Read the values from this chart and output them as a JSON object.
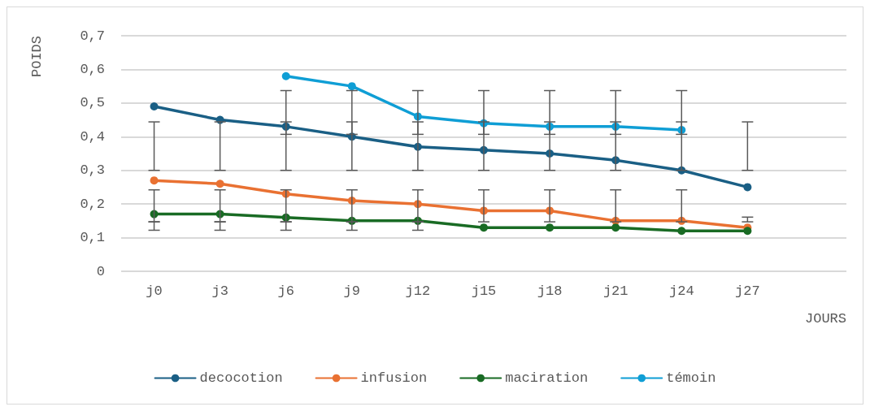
{
  "chart_data": {
    "type": "line",
    "xlabel": "JOURS",
    "ylabel": "POIDS",
    "categories": [
      "j0",
      "j3",
      "j6",
      "j9",
      "j12",
      "j15",
      "j18",
      "j21",
      "j24",
      "j27",
      null
    ],
    "series": [
      {
        "name": "decocotion",
        "color": "#1a5f85",
        "values": [
          0.49,
          0.45,
          0.43,
          0.4,
          0.37,
          0.36,
          0.35,
          0.33,
          0.3,
          0.25,
          null
        ],
        "errors": [
          [
            0.3,
            0.444
          ],
          [
            0.3,
            0.444
          ],
          [
            0.3,
            0.444
          ],
          [
            0.3,
            0.444
          ],
          [
            0.3,
            0.444
          ],
          [
            0.3,
            0.444
          ],
          [
            0.3,
            0.444
          ],
          [
            0.3,
            0.444
          ],
          [
            0.3,
            0.444
          ],
          [
            0.3,
            0.444
          ],
          null
        ]
      },
      {
        "name": "infusion",
        "color": "#e97132",
        "values": [
          0.27,
          0.26,
          0.23,
          0.21,
          0.2,
          0.18,
          0.18,
          0.15,
          0.15,
          0.13,
          null
        ],
        "errors": [
          [
            0.147,
            0.242
          ],
          [
            0.147,
            0.242
          ],
          [
            0.147,
            0.242
          ],
          [
            0.147,
            0.242
          ],
          [
            0.147,
            0.242
          ],
          [
            0.147,
            0.242
          ],
          [
            0.147,
            0.242
          ],
          [
            0.147,
            0.242
          ],
          [
            0.147,
            0.242
          ],
          [
            0.147,
            0.161
          ],
          null
        ]
      },
      {
        "name": "maciration",
        "color": "#196b24",
        "values": [
          0.17,
          0.17,
          0.16,
          0.15,
          0.15,
          0.13,
          0.13,
          0.13,
          0.12,
          0.12,
          null
        ],
        "errors": [
          [
            0.122,
            0.147
          ],
          [
            0.122,
            0.147
          ],
          [
            0.122,
            0.147
          ],
          [
            0.122,
            0.147
          ],
          [
            0.122,
            0.147
          ],
          null,
          null,
          null,
          null,
          null,
          null
        ]
      },
      {
        "name": "témoin",
        "color": "#0f9ed5",
        "values": [
          null,
          null,
          0.58,
          0.55,
          0.46,
          0.44,
          0.43,
          0.43,
          0.42,
          null,
          null
        ],
        "errors": [
          null,
          null,
          [
            0.407,
            0.537
          ],
          [
            0.407,
            0.537
          ],
          [
            0.407,
            0.537
          ],
          [
            0.407,
            0.537
          ],
          [
            0.407,
            0.537
          ],
          [
            0.407,
            0.537
          ],
          [
            0.407,
            0.537
          ],
          null,
          null
        ]
      }
    ],
    "ylim": [
      0,
      0.7
    ],
    "yticks": [
      0,
      {
        "value": 0.1,
        "label": "0,1"
      },
      {
        "value": 0.2,
        "label": "0,2"
      },
      {
        "value": 0.3,
        "label": "0,3"
      },
      {
        "value": 0.4,
        "label": "0,4"
      },
      {
        "value": 0.5,
        "label": "0,5"
      },
      {
        "value": 0.6,
        "label": "0,6"
      },
      {
        "value": 0.7,
        "label": "0,7"
      }
    ],
    "grid": "y",
    "legend": "bottom",
    "marker": "circle",
    "line_style": "solid"
  }
}
